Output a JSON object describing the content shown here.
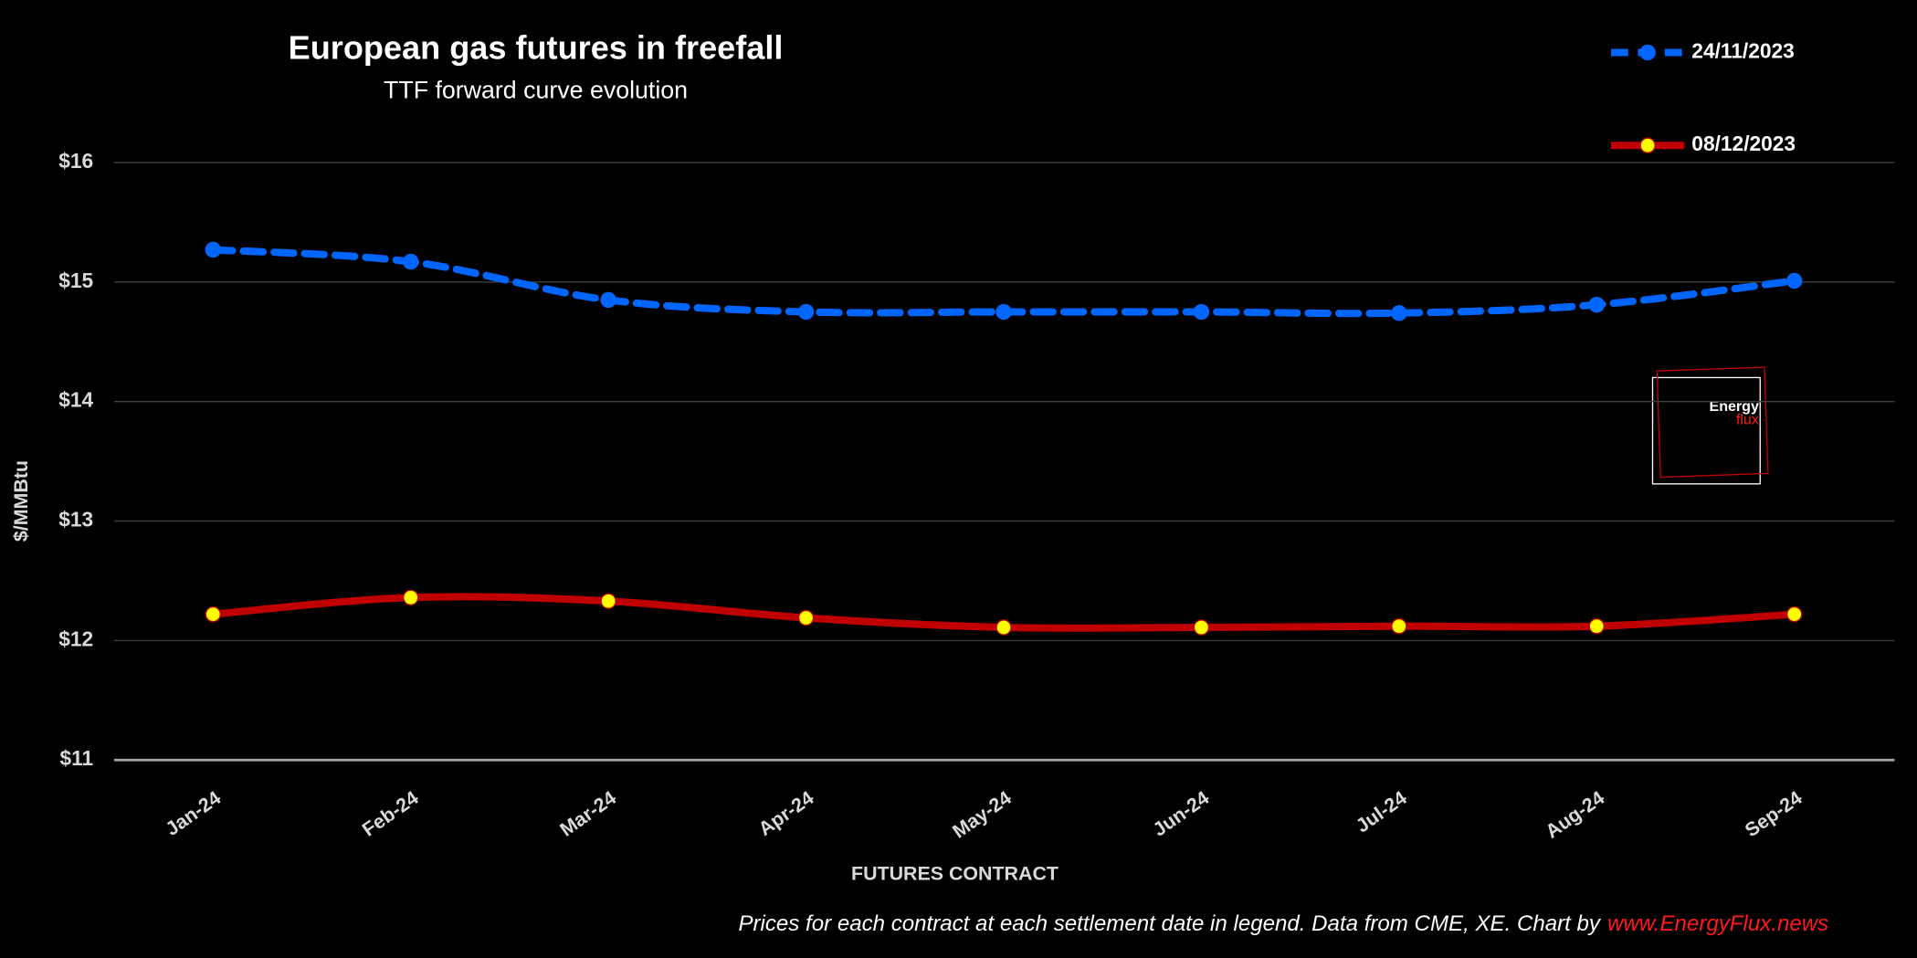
{
  "chart_data": {
    "type": "line",
    "title": "European gas futures in freefall",
    "subtitle": "TTF forward curve evolution",
    "x_label": "FUTURES CONTRACT",
    "y_label": "$/MMBtu",
    "categories": [
      "Jan-24",
      "Feb-24",
      "Mar-24",
      "Apr-24",
      "May-24",
      "Jun-24",
      "Jul-24",
      "Aug-24",
      "Sep-24"
    ],
    "series": [
      {
        "name": "24/11/2023",
        "color": "#0066ff",
        "dashed": true,
        "marker_color": "#0066ff",
        "values": [
          15.27,
          15.17,
          14.85,
          14.75,
          14.75,
          14.75,
          14.74,
          14.81,
          15.01
        ]
      },
      {
        "name": "08/12/2023",
        "color": "#c00000",
        "dashed": false,
        "marker_color": "#ffff00",
        "values": [
          12.22,
          12.36,
          12.33,
          12.19,
          12.11,
          12.11,
          12.12,
          12.12,
          12.22
        ]
      }
    ],
    "ylim": [
      11,
      16
    ],
    "yticks": [
      {
        "value": 11,
        "label": "$11"
      },
      {
        "value": 12,
        "label": "$12"
      },
      {
        "value": 13,
        "label": "$13"
      },
      {
        "value": 14,
        "label": "$14"
      },
      {
        "value": 15,
        "label": "$15"
      },
      {
        "value": 16,
        "label": "$16"
      }
    ],
    "grid": true,
    "legend": "top-right",
    "footnote": "Prices for each contract at each settlement date in legend. Data from CME, XE. Chart by",
    "source_link": "www.EnergyFlux.news",
    "logo": [
      "Energy",
      "flux"
    ]
  }
}
